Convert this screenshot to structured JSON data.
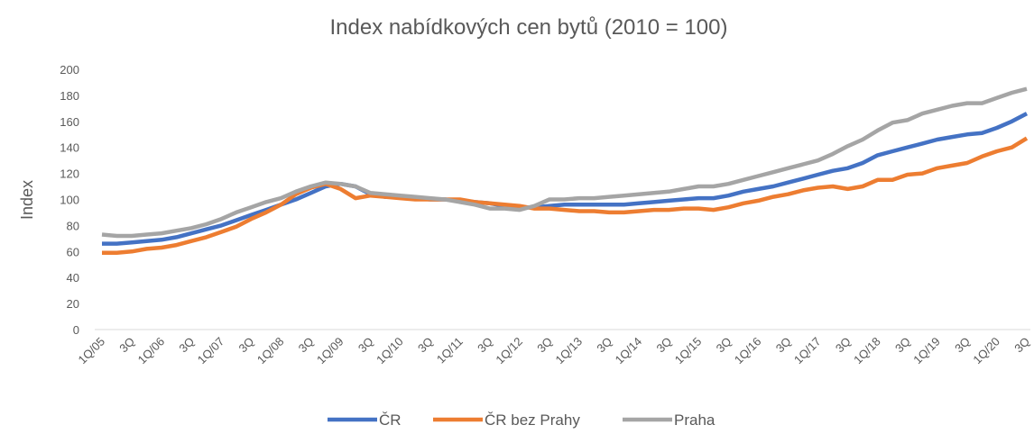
{
  "chart_data": {
    "type": "line",
    "title": "Index nabídkových cen bytů (2010 = 100)",
    "y_label": "Index",
    "categories": [
      "1Q/05",
      null,
      "3Q",
      null,
      "1Q/06",
      null,
      "3Q",
      null,
      "1Q/07",
      null,
      "3Q",
      null,
      "1Q/08",
      null,
      "3Q",
      null,
      "1Q/09",
      null,
      "3Q",
      null,
      "1Q/10",
      null,
      "3Q",
      null,
      "1Q/11",
      null,
      "3Q",
      null,
      "1Q/12",
      null,
      "3Q",
      null,
      "1Q/13",
      null,
      "3Q",
      null,
      "1Q/14",
      null,
      "3Q",
      null,
      "1Q/15",
      null,
      "3Q",
      null,
      "1Q/16",
      null,
      "3Q",
      null,
      "1Q/17",
      null,
      "3Q",
      null,
      "1Q/18",
      null,
      "3Q",
      null,
      "1Q/19",
      null,
      "3Q",
      null,
      "1Q/20",
      null,
      "3Q"
    ],
    "series": [
      {
        "name": "ČR",
        "color": "#4472c4",
        "values": [
          66,
          66,
          67,
          68,
          69,
          71,
          74,
          77,
          80,
          84,
          88,
          92,
          96,
          100,
          105,
          110,
          112,
          110,
          104,
          102,
          102,
          101,
          100,
          100,
          99,
          98,
          97,
          95,
          94,
          94,
          95,
          96,
          96,
          96,
          96,
          96,
          97,
          98,
          99,
          100,
          101,
          101,
          103,
          106,
          108,
          110,
          113,
          116,
          119,
          122,
          124,
          128,
          134,
          137,
          140,
          143,
          146,
          148,
          150,
          151,
          155,
          160,
          166
        ]
      },
      {
        "name": "ČR bez Prahy",
        "color": "#ed7d31",
        "values": [
          59,
          59,
          60,
          62,
          63,
          65,
          68,
          71,
          75,
          79,
          85,
          90,
          96,
          104,
          109,
          112,
          108,
          101,
          103,
          102,
          101,
          100,
          100,
          100,
          100,
          98,
          97,
          96,
          95,
          93,
          93,
          92,
          91,
          91,
          90,
          90,
          91,
          92,
          92,
          93,
          93,
          92,
          94,
          97,
          99,
          102,
          104,
          107,
          109,
          110,
          108,
          110,
          115,
          115,
          119,
          120,
          124,
          126,
          128,
          133,
          137,
          140,
          147
        ]
      },
      {
        "name": "Praha",
        "color": "#a5a5a5",
        "values": [
          73,
          72,
          72,
          73,
          74,
          76,
          78,
          81,
          85,
          90,
          94,
          98,
          101,
          106,
          110,
          113,
          112,
          110,
          105,
          104,
          103,
          102,
          101,
          100,
          98,
          96,
          93,
          93,
          92,
          95,
          100,
          100,
          101,
          101,
          102,
          103,
          104,
          105,
          106,
          108,
          110,
          110,
          112,
          115,
          118,
          121,
          124,
          127,
          130,
          135,
          141,
          146,
          153,
          159,
          161,
          166,
          169,
          172,
          174,
          174,
          178,
          182,
          185
        ]
      }
    ],
    "ylim": [
      0,
      200
    ],
    "yticks": [
      0,
      20,
      40,
      60,
      80,
      100,
      120,
      140,
      160,
      180,
      200
    ],
    "grid": false,
    "legend": "bottom"
  }
}
